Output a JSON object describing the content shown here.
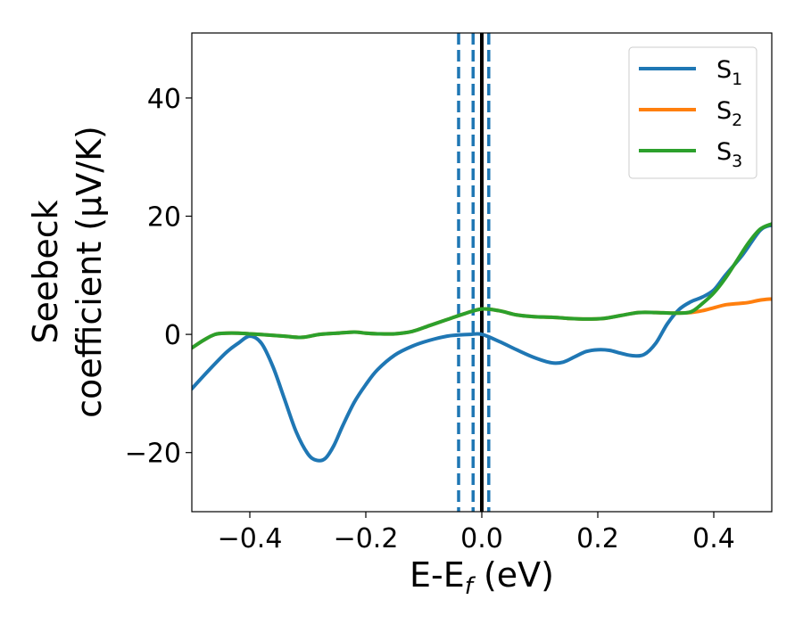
{
  "chart_data": {
    "type": "line",
    "xlabel": "E-E",
    "xlabel_sub": "f",
    "xlabel_unit": " (eV)",
    "ylabel_line1": "Seebeck",
    "ylabel_line2": "coefficient  (μV/K)",
    "xlim": [
      -0.5,
      0.5
    ],
    "ylim": [
      -30,
      51
    ],
    "xticks": [
      -0.4,
      -0.2,
      0.0,
      0.2,
      0.4
    ],
    "xtick_labels": [
      "−0.4",
      "−0.2",
      "0.0",
      "0.2",
      "0.4"
    ],
    "yticks": [
      -20,
      0,
      20,
      40
    ],
    "ytick_labels": [
      "−20",
      "0",
      "20",
      "40"
    ],
    "grid": false,
    "legend_position": "top-right",
    "series": [
      {
        "name": "S",
        "sub": "1",
        "color": "#1f77b4",
        "x": [
          -0.5,
          -0.47,
          -0.44,
          -0.42,
          -0.4,
          -0.38,
          -0.36,
          -0.34,
          -0.32,
          -0.3,
          -0.285,
          -0.27,
          -0.255,
          -0.24,
          -0.22,
          -0.2,
          -0.18,
          -0.15,
          -0.12,
          -0.09,
          -0.06,
          -0.04,
          -0.02,
          0.0,
          0.03,
          0.06,
          0.09,
          0.12,
          0.14,
          0.16,
          0.18,
          0.2,
          0.22,
          0.24,
          0.26,
          0.28,
          0.3,
          0.32,
          0.34,
          0.36,
          0.38,
          0.4,
          0.42,
          0.45,
          0.48,
          0.5
        ],
        "y": [
          -9.2,
          -6,
          -3,
          -1.5,
          -0.3,
          -1.5,
          -5.5,
          -11,
          -16.5,
          -20.2,
          -21.3,
          -21,
          -18.8,
          -15.5,
          -11.5,
          -8.5,
          -6,
          -3.5,
          -2,
          -1,
          -0.3,
          -0.1,
          0.0,
          0.0,
          -1.2,
          -2.6,
          -3.9,
          -4.8,
          -4.7,
          -3.8,
          -2.9,
          -2.6,
          -2.7,
          -3.2,
          -3.6,
          -3.4,
          -1.5,
          1.8,
          4.2,
          5.5,
          6.3,
          7.5,
          10,
          13.5,
          17.6,
          18.5
        ]
      },
      {
        "name": "S",
        "sub": "2",
        "color": "#ff7f0e",
        "x": [
          -0.5,
          -0.48,
          -0.46,
          -0.44,
          -0.42,
          -0.4,
          -0.37,
          -0.34,
          -0.31,
          -0.28,
          -0.25,
          -0.22,
          -0.2,
          -0.18,
          -0.15,
          -0.12,
          -0.09,
          -0.06,
          -0.03,
          0.0,
          0.03,
          0.06,
          0.09,
          0.12,
          0.15,
          0.18,
          0.21,
          0.24,
          0.27,
          0.3,
          0.33,
          0.36,
          0.38,
          0.4,
          0.42,
          0.44,
          0.46,
          0.48,
          0.5
        ],
        "y": [
          -2.3,
          -1,
          0,
          0.2,
          0.2,
          0.1,
          -0.1,
          -0.3,
          -0.5,
          0.0,
          0.2,
          0.4,
          0.2,
          0.1,
          0.1,
          0.5,
          1.5,
          2.5,
          3.5,
          4.3,
          4.0,
          3.3,
          3.0,
          2.9,
          2.7,
          2.6,
          2.7,
          3.2,
          3.7,
          3.7,
          3.6,
          3.7,
          4.0,
          4.5,
          5.0,
          5.2,
          5.4,
          5.8,
          6.0
        ]
      },
      {
        "name": "S",
        "sub": "3",
        "color": "#2ca02c",
        "x": [
          -0.5,
          -0.48,
          -0.46,
          -0.44,
          -0.42,
          -0.4,
          -0.37,
          -0.34,
          -0.31,
          -0.28,
          -0.25,
          -0.22,
          -0.2,
          -0.18,
          -0.15,
          -0.12,
          -0.09,
          -0.06,
          -0.03,
          0.0,
          0.03,
          0.06,
          0.09,
          0.12,
          0.15,
          0.18,
          0.21,
          0.24,
          0.27,
          0.3,
          0.33,
          0.36,
          0.38,
          0.4,
          0.42,
          0.44,
          0.46,
          0.48,
          0.5
        ],
        "y": [
          -2.3,
          -1,
          0,
          0.2,
          0.2,
          0.1,
          -0.1,
          -0.3,
          -0.5,
          0.0,
          0.2,
          0.4,
          0.2,
          0.1,
          0.1,
          0.5,
          1.5,
          2.5,
          3.5,
          4.3,
          4.0,
          3.3,
          3.0,
          2.9,
          2.7,
          2.6,
          2.7,
          3.2,
          3.7,
          3.7,
          3.6,
          3.8,
          5.2,
          7.0,
          9.5,
          12.5,
          15.5,
          17.8,
          18.7
        ]
      }
    ],
    "vlines": [
      {
        "x": -0.04,
        "style": "dashed",
        "color": "#1f77b4"
      },
      {
        "x": -0.015,
        "style": "dashed",
        "color": "#1f77b4"
      },
      {
        "x": 0.0,
        "style": "solid",
        "color": "#000000"
      },
      {
        "x": 0.012,
        "style": "dashed",
        "color": "#1f77b4"
      }
    ]
  }
}
